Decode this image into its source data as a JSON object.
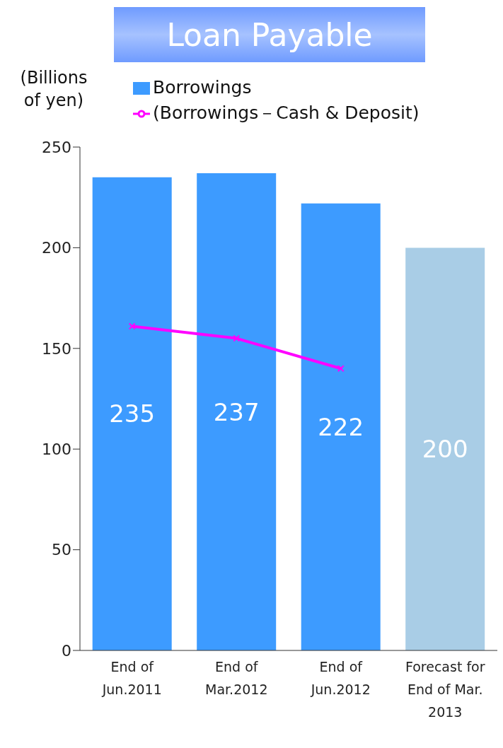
{
  "chart_data": {
    "type": "bar",
    "title": "Loan Payable",
    "ylabel": "(Billions of yen)",
    "categories": [
      "End of Jun.2011",
      "End of Mar.2012",
      "End of Jun.2012",
      "Forecast for End of Mar. 2013"
    ],
    "series": [
      {
        "name": "Borrowings",
        "color": "#3d9bff",
        "colors": [
          "#3d9bff",
          "#3d9bff",
          "#3d9bff",
          "#a9cde6"
        ],
        "values": [
          235,
          237,
          222,
          200
        ],
        "data_labels": true
      },
      {
        "name": "(Borrowings－Cash & Deposit)",
        "type": "line",
        "color": "#ff00ff",
        "values": [
          161,
          155,
          140,
          null
        ],
        "marker": "cross"
      }
    ],
    "ylim": [
      0,
      250
    ],
    "yticks": [
      0,
      50,
      100,
      150,
      200,
      250
    ],
    "grid": false,
    "legend": "top"
  }
}
